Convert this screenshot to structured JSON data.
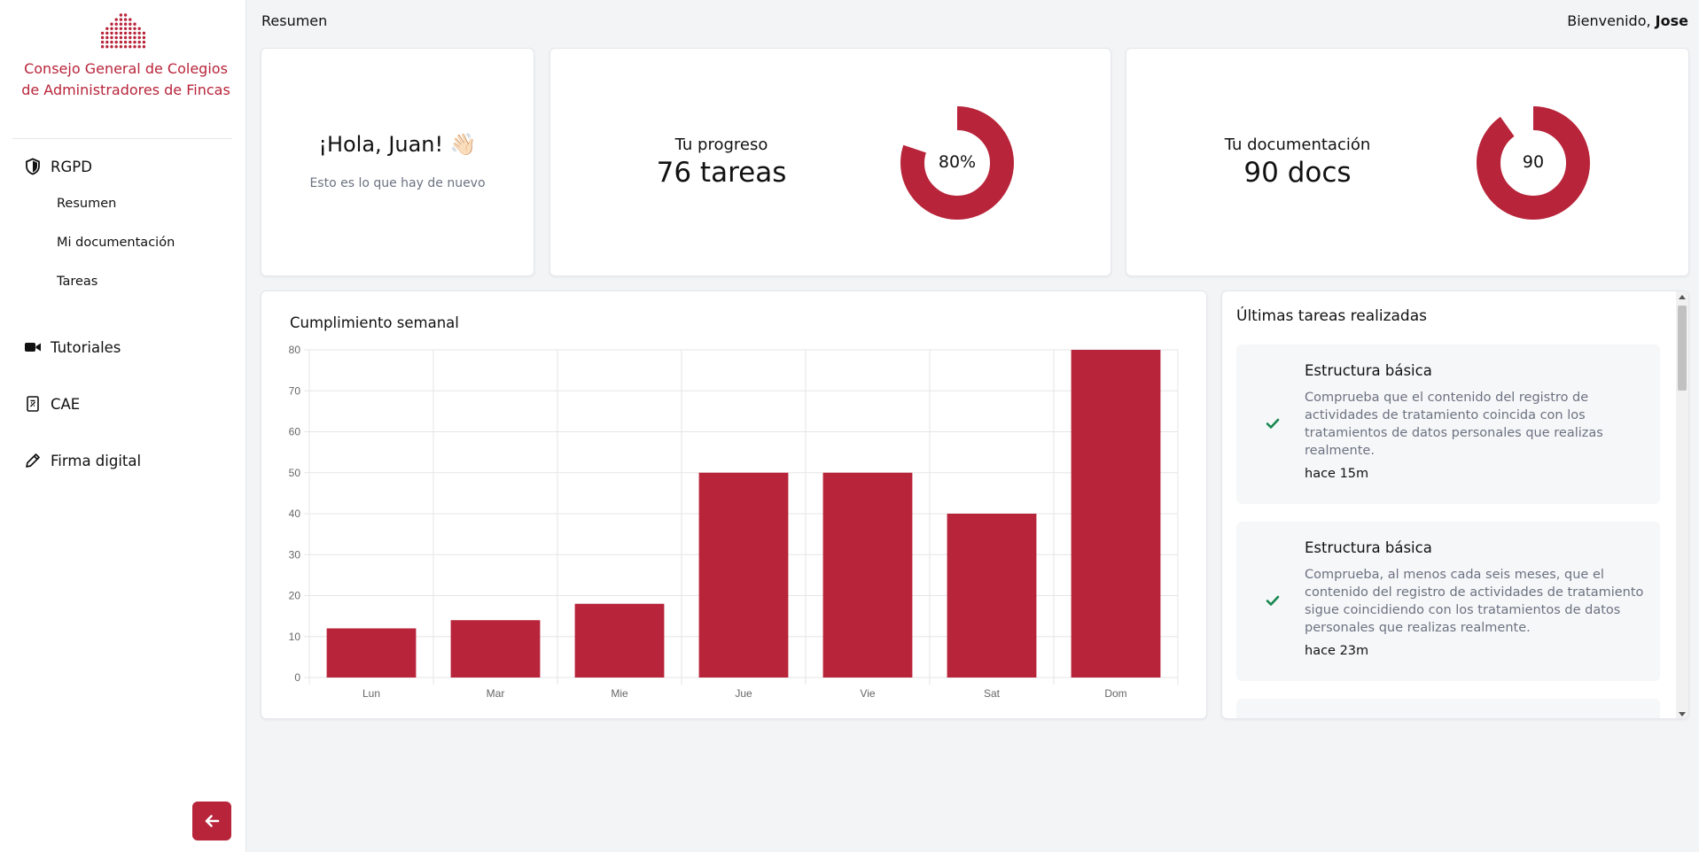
{
  "sidebar": {
    "brand": "Consejo General de Colegios de Administradores de Fincas",
    "sections": [
      {
        "label": "RGPD",
        "icon": "shield-icon",
        "items": [
          {
            "label": "Resumen"
          },
          {
            "label": "Mi documentación"
          },
          {
            "label": "Tareas"
          }
        ]
      },
      {
        "label": "Tutoriales",
        "icon": "video-camera-icon"
      },
      {
        "label": "CAE",
        "icon": "document-icon"
      },
      {
        "label": "Firma digital",
        "icon": "pencil-icon"
      }
    ]
  },
  "header": {
    "title": "Resumen",
    "welcome_prefix": "Bienvenido,",
    "user": "Jose"
  },
  "hello": {
    "title": "¡Hola, Juan! 👋🏻",
    "subtitle": "Esto es lo que hay de nuevo"
  },
  "progress": {
    "label": "Tu progreso",
    "value": "76 tareas",
    "donut_text": "80%",
    "fraction": 0.8
  },
  "documentation": {
    "label": "Tu documentación",
    "value": "90 docs",
    "donut_text": "90",
    "fraction": 0.9
  },
  "colors": {
    "accent": "#b8243a",
    "check": "#16874f"
  },
  "chart": {
    "title": "Cumplimiento semanal"
  },
  "chart_data": {
    "type": "bar",
    "title": "Cumplimiento semanal",
    "categories": [
      "Lun",
      "Mar",
      "Mie",
      "Jue",
      "Vie",
      "Sat",
      "Dom"
    ],
    "values": [
      12,
      14,
      18,
      50,
      50,
      40,
      80
    ],
    "xlabel": "",
    "ylabel": "",
    "ylim": [
      0,
      80
    ],
    "yticks": [
      "0",
      "10",
      "20",
      "30",
      "40",
      "50",
      "60",
      "70",
      "80"
    ],
    "grid": true,
    "color": "#b8243a"
  },
  "tasks": {
    "title": "Últimas tareas realizadas",
    "items": [
      {
        "title": "Estructura básica",
        "description": "Comprueba que el contenido del registro de actividades de tratamiento coincida con los tratamientos de datos personales que realizas realmente.",
        "time": "hace 15m"
      },
      {
        "title": "Estructura básica",
        "description": "Comprueba, al menos cada seis meses, que el contenido del registro de actividades de tratamiento sigue coincidiendo con los tratamientos de datos personales que realizas realmente.",
        "time": "hace 23m"
      }
    ]
  }
}
